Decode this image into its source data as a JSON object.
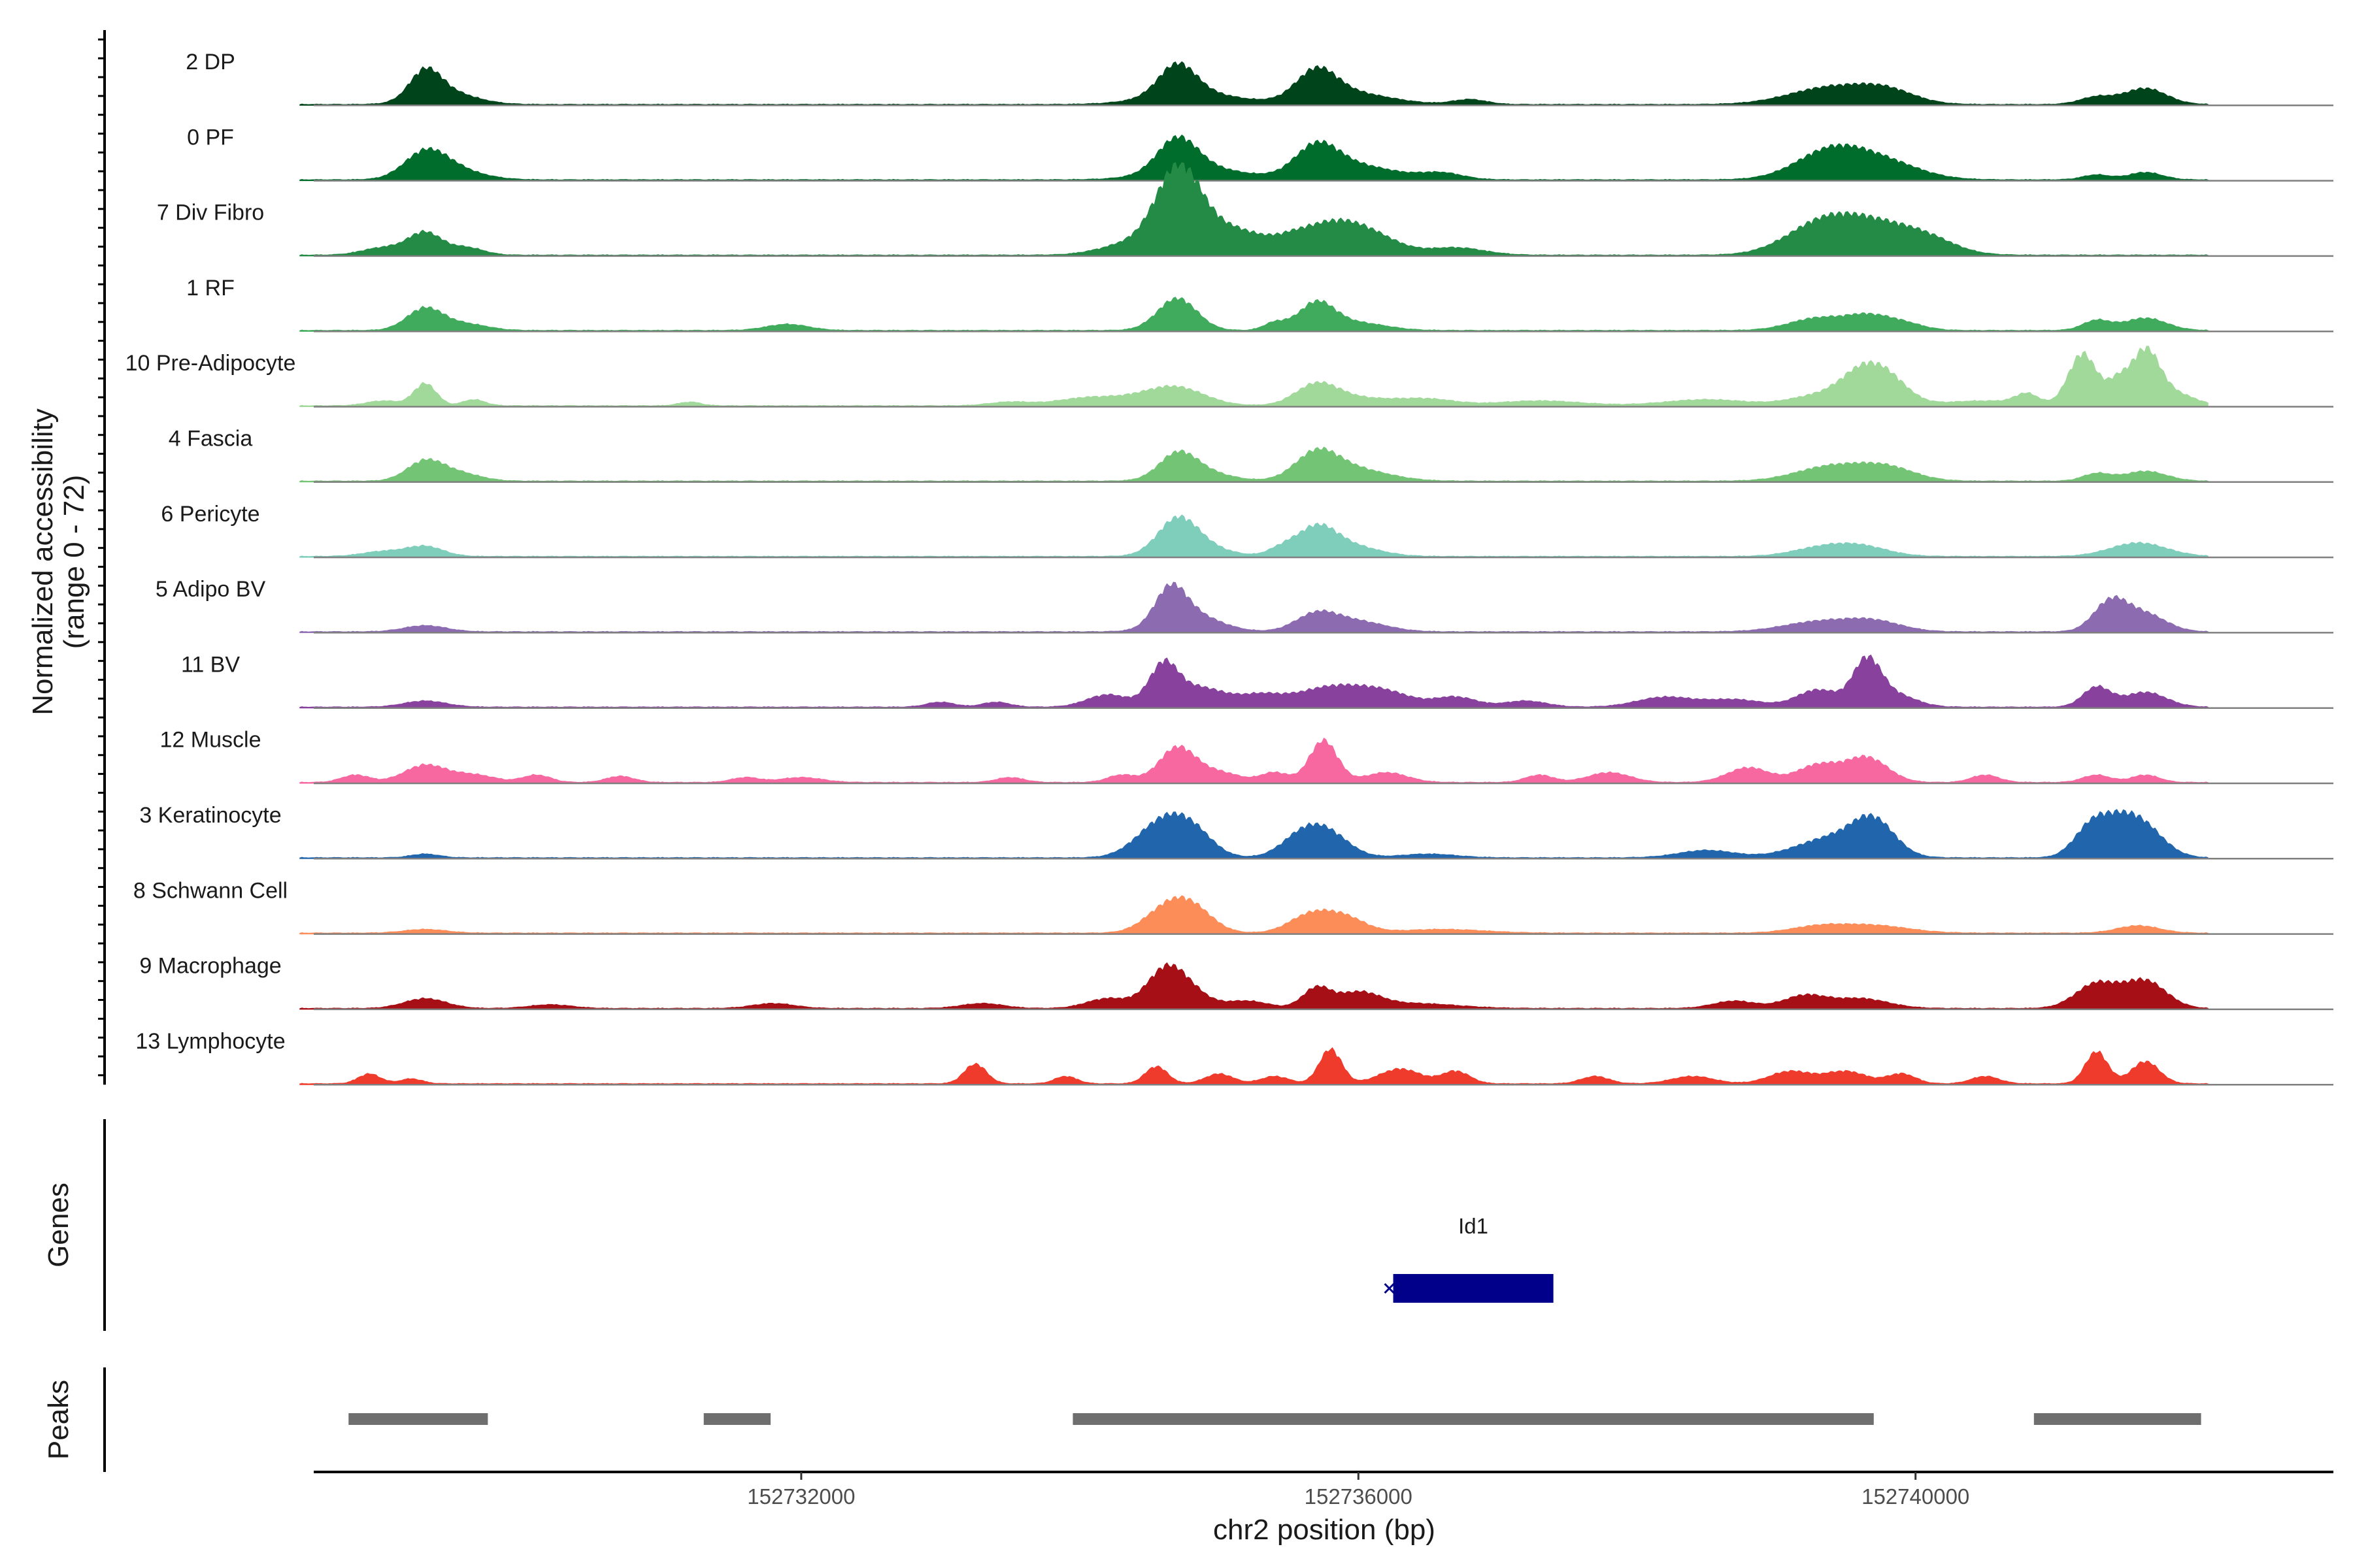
{
  "chart_data": {
    "type": "area",
    "title": "",
    "ylabel_line1": "Normalized accessibility",
    "ylabel_line2": "(range 0 - 72)",
    "ylim": [
      0,
      72
    ],
    "xlabel": "chr2 position (bp)",
    "xlim": [
      152728500,
      152743000
    ],
    "xticks": [
      152732000,
      152736000,
      152740000
    ],
    "series": [
      {
        "name": "2 DP",
        "color": "#00441b",
        "peaks": [
          [
            152729300,
            22,
            110
          ],
          [
            152729450,
            10,
            200
          ],
          [
            152734700,
            24,
            130
          ],
          [
            152734800,
            10,
            300
          ],
          [
            152735700,
            22,
            140
          ],
          [
            152735900,
            10,
            300
          ],
          [
            152736800,
            4,
            120
          ],
          [
            152739400,
            14,
            300
          ],
          [
            152739800,
            9,
            200
          ],
          [
            152741300,
            6,
            120
          ],
          [
            152741650,
            13,
            150
          ]
        ]
      },
      {
        "name": "0 PF",
        "color": "#006d2c",
        "peaks": [
          [
            152729300,
            20,
            150
          ],
          [
            152729500,
            8,
            200
          ],
          [
            152734700,
            26,
            140
          ],
          [
            152734850,
            10,
            300
          ],
          [
            152735700,
            22,
            150
          ],
          [
            152735950,
            12,
            300
          ],
          [
            152736600,
            5,
            150
          ],
          [
            152739400,
            24,
            250
          ],
          [
            152739800,
            12,
            250
          ],
          [
            152741300,
            4,
            100
          ],
          [
            152741650,
            6,
            120
          ]
        ]
      },
      {
        "name": "7 Div Fibro",
        "color": "#238b45",
        "peaks": [
          [
            152729000,
            6,
            150
          ],
          [
            152729300,
            18,
            120
          ],
          [
            152729600,
            6,
            120
          ],
          [
            152734300,
            6,
            200
          ],
          [
            152734700,
            45,
            150
          ],
          [
            152734800,
            30,
            250
          ],
          [
            152735200,
            10,
            150
          ],
          [
            152735500,
            10,
            150
          ],
          [
            152735800,
            22,
            200
          ],
          [
            152736100,
            14,
            200
          ],
          [
            152736700,
            6,
            200
          ],
          [
            152739300,
            20,
            250
          ],
          [
            152739700,
            24,
            300
          ],
          [
            152740100,
            8,
            200
          ]
        ]
      },
      {
        "name": "1 RF",
        "color": "#41ab5d",
        "peaks": [
          [
            152729300,
            18,
            130
          ],
          [
            152729600,
            5,
            150
          ],
          [
            152731900,
            5,
            150
          ],
          [
            152734700,
            26,
            140
          ],
          [
            152735400,
            6,
            80
          ],
          [
            152735700,
            22,
            130
          ],
          [
            152736000,
            6,
            200
          ],
          [
            152739300,
            10,
            200
          ],
          [
            152739650,
            10,
            150
          ],
          [
            152739900,
            6,
            150
          ],
          [
            152741300,
            8,
            100
          ],
          [
            152741650,
            10,
            150
          ]
        ]
      },
      {
        "name": "10 Pre-Adipocyte",
        "color": "#a1d99b",
        "peaks": [
          [
            152729300,
            18,
            80
          ],
          [
            152729000,
            4,
            120
          ],
          [
            152729650,
            5,
            80
          ],
          [
            152731200,
            3,
            80
          ],
          [
            152733500,
            3,
            150
          ],
          [
            152734000,
            4,
            200
          ],
          [
            152734400,
            6,
            300
          ],
          [
            152734700,
            12,
            200
          ],
          [
            152735700,
            16,
            150
          ],
          [
            152736000,
            6,
            250
          ],
          [
            152736500,
            5,
            200
          ],
          [
            152737300,
            4,
            300
          ],
          [
            152738500,
            5,
            300
          ],
          [
            152739300,
            8,
            200
          ],
          [
            152739600,
            22,
            150
          ],
          [
            152739800,
            20,
            150
          ],
          [
            152740500,
            4,
            300
          ],
          [
            152741200,
            42,
            100
          ],
          [
            152741450,
            18,
            80
          ],
          [
            152741650,
            42,
            100
          ],
          [
            152741850,
            10,
            150
          ],
          [
            152740800,
            8,
            80
          ]
        ]
      },
      {
        "name": "4 Fascia",
        "color": "#74c476",
        "peaks": [
          [
            152729300,
            16,
            130
          ],
          [
            152729550,
            6,
            150
          ],
          [
            152734700,
            18,
            130
          ],
          [
            152734850,
            8,
            200
          ],
          [
            152735700,
            20,
            150
          ],
          [
            152735950,
            10,
            250
          ],
          [
            152739400,
            12,
            250
          ],
          [
            152739800,
            10,
            200
          ],
          [
            152741300,
            6,
            100
          ],
          [
            152741650,
            8,
            150
          ]
        ]
      },
      {
        "name": "6 Pericyte",
        "color": "#7fcdbb",
        "peaks": [
          [
            152729000,
            4,
            150
          ],
          [
            152729300,
            8,
            130
          ],
          [
            152734700,
            26,
            140
          ],
          [
            152734850,
            8,
            200
          ],
          [
            152735450,
            6,
            100
          ],
          [
            152735700,
            22,
            140
          ],
          [
            152735950,
            8,
            200
          ],
          [
            152739300,
            6,
            200
          ],
          [
            152739600,
            8,
            200
          ],
          [
            152741600,
            11,
            200
          ]
        ]
      },
      {
        "name": "5 Adipo BV",
        "color": "#8c6bb1",
        "peaks": [
          [
            152729300,
            5,
            150
          ],
          [
            152734650,
            28,
            110
          ],
          [
            152734800,
            14,
            200
          ],
          [
            152735700,
            14,
            150
          ],
          [
            152736000,
            8,
            200
          ],
          [
            152739300,
            8,
            250
          ],
          [
            152739700,
            8,
            200
          ],
          [
            152741400,
            24,
            120
          ],
          [
            152741650,
            14,
            150
          ]
        ]
      },
      {
        "name": "11 BV",
        "color": "#88419d",
        "peaks": [
          [
            152729300,
            5,
            150
          ],
          [
            152733000,
            4,
            100
          ],
          [
            152733400,
            4,
            100
          ],
          [
            152734200,
            10,
            150
          ],
          [
            152734600,
            30,
            100
          ],
          [
            152734850,
            16,
            200
          ],
          [
            152735300,
            8,
            150
          ],
          [
            152735800,
            16,
            250
          ],
          [
            152736200,
            10,
            200
          ],
          [
            152736700,
            8,
            150
          ],
          [
            152737200,
            5,
            150
          ],
          [
            152738200,
            8,
            200
          ],
          [
            152738700,
            6,
            200
          ],
          [
            152739300,
            14,
            150
          ],
          [
            152739650,
            36,
            100
          ],
          [
            152739850,
            10,
            150
          ],
          [
            152741300,
            16,
            100
          ],
          [
            152741650,
            12,
            150
          ]
        ]
      },
      {
        "name": "12 Muscle",
        "color": "#f768a1",
        "peaks": [
          [
            152728800,
            6,
            100
          ],
          [
            152729300,
            14,
            150
          ],
          [
            152729650,
            6,
            150
          ],
          [
            152730100,
            6,
            100
          ],
          [
            152730700,
            5,
            100
          ],
          [
            152731600,
            4,
            100
          ],
          [
            152732000,
            4,
            150
          ],
          [
            152733500,
            4,
            100
          ],
          [
            152734300,
            6,
            100
          ],
          [
            152734700,
            28,
            130
          ],
          [
            152735000,
            8,
            150
          ],
          [
            152735400,
            8,
            100
          ],
          [
            152735750,
            34,
            100
          ],
          [
            152736200,
            8,
            150
          ],
          [
            152737300,
            6,
            100
          ],
          [
            152737800,
            8,
            150
          ],
          [
            152738800,
            12,
            150
          ],
          [
            152739300,
            14,
            150
          ],
          [
            152739650,
            20,
            150
          ],
          [
            152740500,
            6,
            100
          ],
          [
            152741300,
            6,
            100
          ],
          [
            152741650,
            6,
            100
          ]
        ]
      },
      {
        "name": "3 Keratinocyte",
        "color": "#2166ac",
        "peaks": [
          [
            152729300,
            3,
            100
          ],
          [
            152734600,
            20,
            150
          ],
          [
            152734800,
            22,
            150
          ],
          [
            152734450,
            8,
            150
          ],
          [
            152735600,
            18,
            150
          ],
          [
            152735800,
            16,
            150
          ],
          [
            152736500,
            3,
            200
          ],
          [
            152738500,
            6,
            200
          ],
          [
            152739400,
            16,
            250
          ],
          [
            152739700,
            26,
            150
          ],
          [
            152741250,
            20,
            120
          ],
          [
            152741450,
            24,
            150
          ],
          [
            152741650,
            20,
            150
          ]
        ]
      },
      {
        "name": "8 Schwann Cell",
        "color": "#fc8d59",
        "peaks": [
          [
            152729300,
            3,
            150
          ],
          [
            152734600,
            16,
            150
          ],
          [
            152734800,
            20,
            150
          ],
          [
            152735650,
            14,
            150
          ],
          [
            152735900,
            12,
            150
          ],
          [
            152736600,
            3,
            300
          ],
          [
            152739300,
            5,
            200
          ],
          [
            152739700,
            6,
            250
          ],
          [
            152741600,
            6,
            150
          ]
        ]
      },
      {
        "name": "9 Macrophage",
        "color": "#a50f15",
        "peaks": [
          [
            152729300,
            8,
            150
          ],
          [
            152730200,
            3,
            150
          ],
          [
            152731800,
            4,
            150
          ],
          [
            152733300,
            4,
            150
          ],
          [
            152734200,
            8,
            150
          ],
          [
            152734600,
            24,
            130
          ],
          [
            152734750,
            16,
            150
          ],
          [
            152735200,
            6,
            150
          ],
          [
            152735700,
            16,
            100
          ],
          [
            152736000,
            12,
            150
          ],
          [
            152736400,
            4,
            300
          ],
          [
            152738700,
            6,
            150
          ],
          [
            152739200,
            10,
            150
          ],
          [
            152739600,
            8,
            200
          ],
          [
            152741300,
            20,
            150
          ],
          [
            152741650,
            22,
            150
          ]
        ]
      },
      {
        "name": "13 Lymphocyte",
        "color": "#ef3b2c",
        "peaks": [
          [
            152728900,
            8,
            80
          ],
          [
            152729200,
            4,
            80
          ],
          [
            152733250,
            16,
            80
          ],
          [
            152733900,
            6,
            80
          ],
          [
            152734550,
            14,
            80
          ],
          [
            152735000,
            8,
            100
          ],
          [
            152735400,
            6,
            100
          ],
          [
            152735800,
            28,
            80
          ],
          [
            152736300,
            12,
            150
          ],
          [
            152736700,
            10,
            100
          ],
          [
            152737700,
            6,
            100
          ],
          [
            152738400,
            6,
            150
          ],
          [
            152739100,
            10,
            150
          ],
          [
            152739500,
            10,
            150
          ],
          [
            152739900,
            8,
            100
          ],
          [
            152740500,
            6,
            100
          ],
          [
            152741300,
            26,
            80
          ],
          [
            152741650,
            18,
            100
          ]
        ]
      }
    ],
    "genes": [
      {
        "name": "Id1",
        "start": 152736250,
        "end": 152737400,
        "strand": "-"
      }
    ],
    "peaks_track": [
      {
        "start": 152728750,
        "end": 152729750
      },
      {
        "start": 152731300,
        "end": 152731780
      },
      {
        "start": 152733950,
        "end": 152739700
      },
      {
        "start": 152740850,
        "end": 152742050
      }
    ],
    "genes_label": "Genes",
    "peaks_label": "Peaks"
  }
}
